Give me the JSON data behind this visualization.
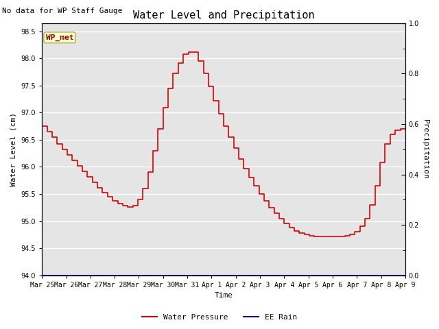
{
  "title": "Water Level and Precipitation",
  "subtitle": "No data for WP Staff Gauge",
  "ylabel_left": "Water Level (cm)",
  "ylabel_right": "Precipitation",
  "xlabel": "Time",
  "ylim_left": [
    94.0,
    98.65
  ],
  "ylim_right": [
    0.0,
    1.0
  ],
  "bg_color": "#e5e5e5",
  "line_color_wp": "#dd0000",
  "line_color_rain": "#0000bb",
  "annotation_label": "WP_met",
  "annotation_text_color": "#8b0000",
  "annotation_bg_color": "#ffffcc",
  "annotation_border_color": "#aaaa55",
  "legend_wp": "Water Pressure",
  "legend_rain": "EE Rain",
  "water_pressure_y": [
    96.75,
    96.65,
    96.55,
    96.42,
    96.32,
    96.22,
    96.12,
    96.02,
    95.92,
    95.82,
    95.72,
    95.62,
    95.52,
    95.45,
    95.38,
    95.32,
    95.28,
    95.26,
    95.28,
    95.4,
    95.6,
    95.9,
    96.3,
    96.7,
    97.1,
    97.45,
    97.72,
    97.92,
    98.08,
    98.12,
    98.12,
    97.95,
    97.72,
    97.48,
    97.22,
    96.98,
    96.75,
    96.55,
    96.35,
    96.15,
    95.97,
    95.8,
    95.65,
    95.5,
    95.38,
    95.25,
    95.15,
    95.05,
    94.96,
    94.88,
    94.82,
    94.78,
    94.75,
    94.73,
    94.72,
    94.72,
    94.72,
    94.72,
    94.72,
    94.72,
    94.73,
    94.75,
    94.8,
    94.9,
    95.05,
    95.3,
    95.65,
    96.08,
    96.42,
    96.6,
    96.68,
    96.7,
    96.72
  ],
  "xtick_labels": [
    "Mar 25",
    "Mar 26",
    "Mar 27",
    "Mar 28",
    "Mar 29",
    "Mar 30",
    "Mar 31",
    "Apr 1",
    "Apr 2",
    "Apr 3",
    "Apr 4",
    "Apr 5",
    "Apr 6",
    "Apr 7",
    "Apr 8",
    "Apr 9"
  ],
  "yticks_left": [
    94.0,
    94.5,
    95.0,
    95.5,
    96.0,
    96.5,
    97.0,
    97.5,
    98.0,
    98.5
  ],
  "yticks_right_major": [
    0.0,
    0.2,
    0.4,
    0.6,
    0.8,
    1.0
  ],
  "yticks_right_minor": [
    0.1,
    0.3,
    0.5,
    0.7,
    0.9
  ],
  "font_size_title": 11,
  "font_size_subtitle": 8,
  "font_size_axis": 8,
  "font_size_tick": 7,
  "font_size_legend": 8,
  "font_size_annotation": 8
}
